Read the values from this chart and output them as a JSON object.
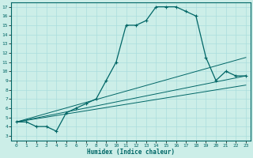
{
  "xlabel": "Humidex (Indice chaleur)",
  "bg_color": "#cceee8",
  "line_color": "#006666",
  "grid_color": "#aadddd",
  "ylim": [
    2.5,
    17.5
  ],
  "xlim": [
    -0.5,
    23.5
  ],
  "yticks": [
    3,
    4,
    5,
    6,
    7,
    8,
    9,
    10,
    11,
    12,
    13,
    14,
    15,
    16,
    17
  ],
  "xticks": [
    0,
    1,
    2,
    3,
    4,
    5,
    6,
    7,
    8,
    9,
    10,
    11,
    12,
    13,
    14,
    15,
    16,
    17,
    18,
    19,
    20,
    21,
    22,
    23
  ],
  "curve1_x": [
    0,
    1,
    2,
    3,
    4,
    5,
    6,
    7,
    8,
    9,
    10,
    11,
    12,
    13,
    14,
    15,
    16,
    17,
    18,
    19,
    20,
    21,
    22,
    23
  ],
  "curve1_y": [
    4.5,
    4.5,
    4.0,
    4.0,
    3.5,
    5.5,
    6.0,
    6.5,
    7.0,
    9.0,
    11.0,
    15.0,
    15.0,
    15.5,
    17.0,
    17.0,
    17.0,
    16.5,
    16.0,
    11.5,
    9.0,
    10.0,
    9.5,
    9.5
  ],
  "curve2_x": [
    0,
    23
  ],
  "curve2_y": [
    4.5,
    11.5
  ],
  "curve3_x": [
    0,
    23
  ],
  "curve3_y": [
    4.5,
    9.5
  ],
  "curve4_x": [
    0,
    23
  ],
  "curve4_y": [
    4.5,
    8.5
  ]
}
